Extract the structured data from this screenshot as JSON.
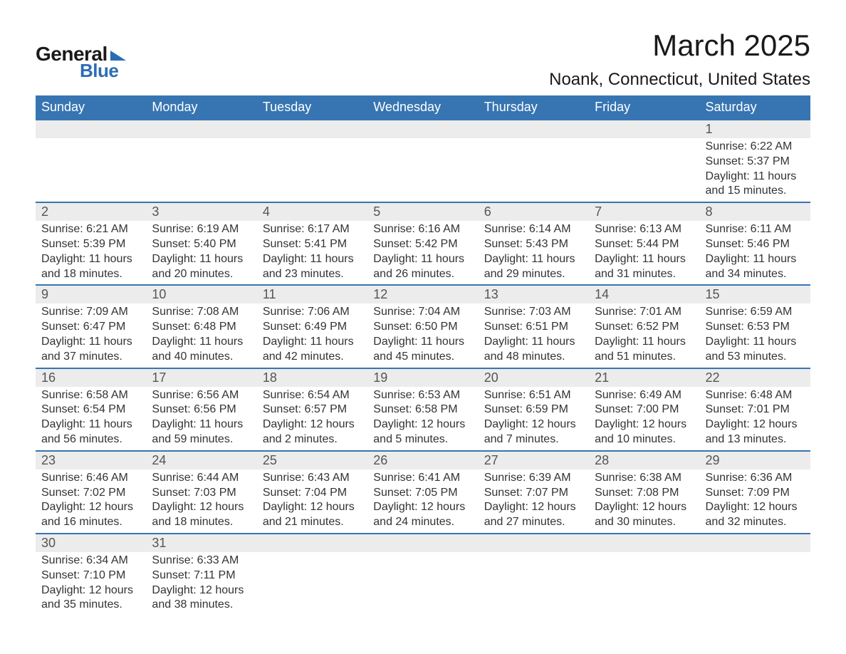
{
  "brand": {
    "word1": "General",
    "word2": "Blue",
    "accent_color": "#2a6db4"
  },
  "title": "March 2025",
  "location": "Noank, Connecticut, United States",
  "colors": {
    "header_bg": "#3775b2",
    "header_text": "#ffffff",
    "daynum_bg": "#ececec",
    "row_border": "#3775b2",
    "body_text": "#333333",
    "page_bg": "#ffffff"
  },
  "day_headers": [
    "Sunday",
    "Monday",
    "Tuesday",
    "Wednesday",
    "Thursday",
    "Friday",
    "Saturday"
  ],
  "weeks": [
    {
      "days": [
        null,
        null,
        null,
        null,
        null,
        null,
        {
          "n": "1",
          "sunrise": "Sunrise: 6:22 AM",
          "sunset": "Sunset: 5:37 PM",
          "day1": "Daylight: 11 hours",
          "day2": "and 15 minutes."
        }
      ]
    },
    {
      "days": [
        {
          "n": "2",
          "sunrise": "Sunrise: 6:21 AM",
          "sunset": "Sunset: 5:39 PM",
          "day1": "Daylight: 11 hours",
          "day2": "and 18 minutes."
        },
        {
          "n": "3",
          "sunrise": "Sunrise: 6:19 AM",
          "sunset": "Sunset: 5:40 PM",
          "day1": "Daylight: 11 hours",
          "day2": "and 20 minutes."
        },
        {
          "n": "4",
          "sunrise": "Sunrise: 6:17 AM",
          "sunset": "Sunset: 5:41 PM",
          "day1": "Daylight: 11 hours",
          "day2": "and 23 minutes."
        },
        {
          "n": "5",
          "sunrise": "Sunrise: 6:16 AM",
          "sunset": "Sunset: 5:42 PM",
          "day1": "Daylight: 11 hours",
          "day2": "and 26 minutes."
        },
        {
          "n": "6",
          "sunrise": "Sunrise: 6:14 AM",
          "sunset": "Sunset: 5:43 PM",
          "day1": "Daylight: 11 hours",
          "day2": "and 29 minutes."
        },
        {
          "n": "7",
          "sunrise": "Sunrise: 6:13 AM",
          "sunset": "Sunset: 5:44 PM",
          "day1": "Daylight: 11 hours",
          "day2": "and 31 minutes."
        },
        {
          "n": "8",
          "sunrise": "Sunrise: 6:11 AM",
          "sunset": "Sunset: 5:46 PM",
          "day1": "Daylight: 11 hours",
          "day2": "and 34 minutes."
        }
      ]
    },
    {
      "days": [
        {
          "n": "9",
          "sunrise": "Sunrise: 7:09 AM",
          "sunset": "Sunset: 6:47 PM",
          "day1": "Daylight: 11 hours",
          "day2": "and 37 minutes."
        },
        {
          "n": "10",
          "sunrise": "Sunrise: 7:08 AM",
          "sunset": "Sunset: 6:48 PM",
          "day1": "Daylight: 11 hours",
          "day2": "and 40 minutes."
        },
        {
          "n": "11",
          "sunrise": "Sunrise: 7:06 AM",
          "sunset": "Sunset: 6:49 PM",
          "day1": "Daylight: 11 hours",
          "day2": "and 42 minutes."
        },
        {
          "n": "12",
          "sunrise": "Sunrise: 7:04 AM",
          "sunset": "Sunset: 6:50 PM",
          "day1": "Daylight: 11 hours",
          "day2": "and 45 minutes."
        },
        {
          "n": "13",
          "sunrise": "Sunrise: 7:03 AM",
          "sunset": "Sunset: 6:51 PM",
          "day1": "Daylight: 11 hours",
          "day2": "and 48 minutes."
        },
        {
          "n": "14",
          "sunrise": "Sunrise: 7:01 AM",
          "sunset": "Sunset: 6:52 PM",
          "day1": "Daylight: 11 hours",
          "day2": "and 51 minutes."
        },
        {
          "n": "15",
          "sunrise": "Sunrise: 6:59 AM",
          "sunset": "Sunset: 6:53 PM",
          "day1": "Daylight: 11 hours",
          "day2": "and 53 minutes."
        }
      ]
    },
    {
      "days": [
        {
          "n": "16",
          "sunrise": "Sunrise: 6:58 AM",
          "sunset": "Sunset: 6:54 PM",
          "day1": "Daylight: 11 hours",
          "day2": "and 56 minutes."
        },
        {
          "n": "17",
          "sunrise": "Sunrise: 6:56 AM",
          "sunset": "Sunset: 6:56 PM",
          "day1": "Daylight: 11 hours",
          "day2": "and 59 minutes."
        },
        {
          "n": "18",
          "sunrise": "Sunrise: 6:54 AM",
          "sunset": "Sunset: 6:57 PM",
          "day1": "Daylight: 12 hours",
          "day2": "and 2 minutes."
        },
        {
          "n": "19",
          "sunrise": "Sunrise: 6:53 AM",
          "sunset": "Sunset: 6:58 PM",
          "day1": "Daylight: 12 hours",
          "day2": "and 5 minutes."
        },
        {
          "n": "20",
          "sunrise": "Sunrise: 6:51 AM",
          "sunset": "Sunset: 6:59 PM",
          "day1": "Daylight: 12 hours",
          "day2": "and 7 minutes."
        },
        {
          "n": "21",
          "sunrise": "Sunrise: 6:49 AM",
          "sunset": "Sunset: 7:00 PM",
          "day1": "Daylight: 12 hours",
          "day2": "and 10 minutes."
        },
        {
          "n": "22",
          "sunrise": "Sunrise: 6:48 AM",
          "sunset": "Sunset: 7:01 PM",
          "day1": "Daylight: 12 hours",
          "day2": "and 13 minutes."
        }
      ]
    },
    {
      "days": [
        {
          "n": "23",
          "sunrise": "Sunrise: 6:46 AM",
          "sunset": "Sunset: 7:02 PM",
          "day1": "Daylight: 12 hours",
          "day2": "and 16 minutes."
        },
        {
          "n": "24",
          "sunrise": "Sunrise: 6:44 AM",
          "sunset": "Sunset: 7:03 PM",
          "day1": "Daylight: 12 hours",
          "day2": "and 18 minutes."
        },
        {
          "n": "25",
          "sunrise": "Sunrise: 6:43 AM",
          "sunset": "Sunset: 7:04 PM",
          "day1": "Daylight: 12 hours",
          "day2": "and 21 minutes."
        },
        {
          "n": "26",
          "sunrise": "Sunrise: 6:41 AM",
          "sunset": "Sunset: 7:05 PM",
          "day1": "Daylight: 12 hours",
          "day2": "and 24 minutes."
        },
        {
          "n": "27",
          "sunrise": "Sunrise: 6:39 AM",
          "sunset": "Sunset: 7:07 PM",
          "day1": "Daylight: 12 hours",
          "day2": "and 27 minutes."
        },
        {
          "n": "28",
          "sunrise": "Sunrise: 6:38 AM",
          "sunset": "Sunset: 7:08 PM",
          "day1": "Daylight: 12 hours",
          "day2": "and 30 minutes."
        },
        {
          "n": "29",
          "sunrise": "Sunrise: 6:36 AM",
          "sunset": "Sunset: 7:09 PM",
          "day1": "Daylight: 12 hours",
          "day2": "and 32 minutes."
        }
      ]
    },
    {
      "days": [
        {
          "n": "30",
          "sunrise": "Sunrise: 6:34 AM",
          "sunset": "Sunset: 7:10 PM",
          "day1": "Daylight: 12 hours",
          "day2": "and 35 minutes."
        },
        {
          "n": "31",
          "sunrise": "Sunrise: 6:33 AM",
          "sunset": "Sunset: 7:11 PM",
          "day1": "Daylight: 12 hours",
          "day2": "and 38 minutes."
        },
        null,
        null,
        null,
        null,
        null
      ]
    }
  ]
}
